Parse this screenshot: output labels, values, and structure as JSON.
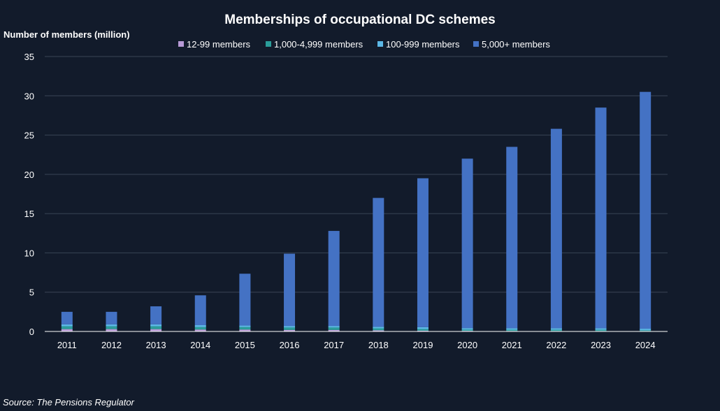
{
  "chart_data": {
    "type": "bar",
    "stacked": true,
    "title": "Memberships of occupational DC schemes",
    "ylabel": "Number of members (million)",
    "xlabel": "",
    "ylim": [
      0,
      35
    ],
    "yticks": [
      0,
      5,
      10,
      15,
      20,
      25,
      30,
      35
    ],
    "grid": true,
    "legend_position": "top",
    "categories": [
      "2011",
      "2012",
      "2013",
      "2014",
      "2015",
      "2016",
      "2017",
      "2018",
      "2019",
      "2020",
      "2021",
      "2022",
      "2023",
      "2024"
    ],
    "series": [
      {
        "name": "12-99 members",
        "color": "#b79ad6",
        "values": [
          0.3,
          0.3,
          0.3,
          0.25,
          0.25,
          0.2,
          0.2,
          0.15,
          0.1,
          0.08,
          0.07,
          0.06,
          0.06,
          0.05
        ]
      },
      {
        "name": "1,000-4,999 members",
        "color": "#2a9d9a",
        "values": [
          0.35,
          0.35,
          0.35,
          0.3,
          0.3,
          0.3,
          0.3,
          0.25,
          0.2,
          0.15,
          0.15,
          0.15,
          0.15,
          0.1
        ]
      },
      {
        "name": "100-999 members",
        "color": "#5cb8e6",
        "values": [
          0.25,
          0.25,
          0.25,
          0.25,
          0.2,
          0.2,
          0.2,
          0.2,
          0.25,
          0.2,
          0.2,
          0.2,
          0.2,
          0.2
        ]
      },
      {
        "name": "5,000+ members",
        "color": "#4472c4",
        "values": [
          1.6,
          1.6,
          2.3,
          3.8,
          6.6,
          9.2,
          12.1,
          16.4,
          18.95,
          21.57,
          23.08,
          25.39,
          28.09,
          30.15
        ]
      }
    ]
  },
  "source": "Source: The Pensions Regulator"
}
